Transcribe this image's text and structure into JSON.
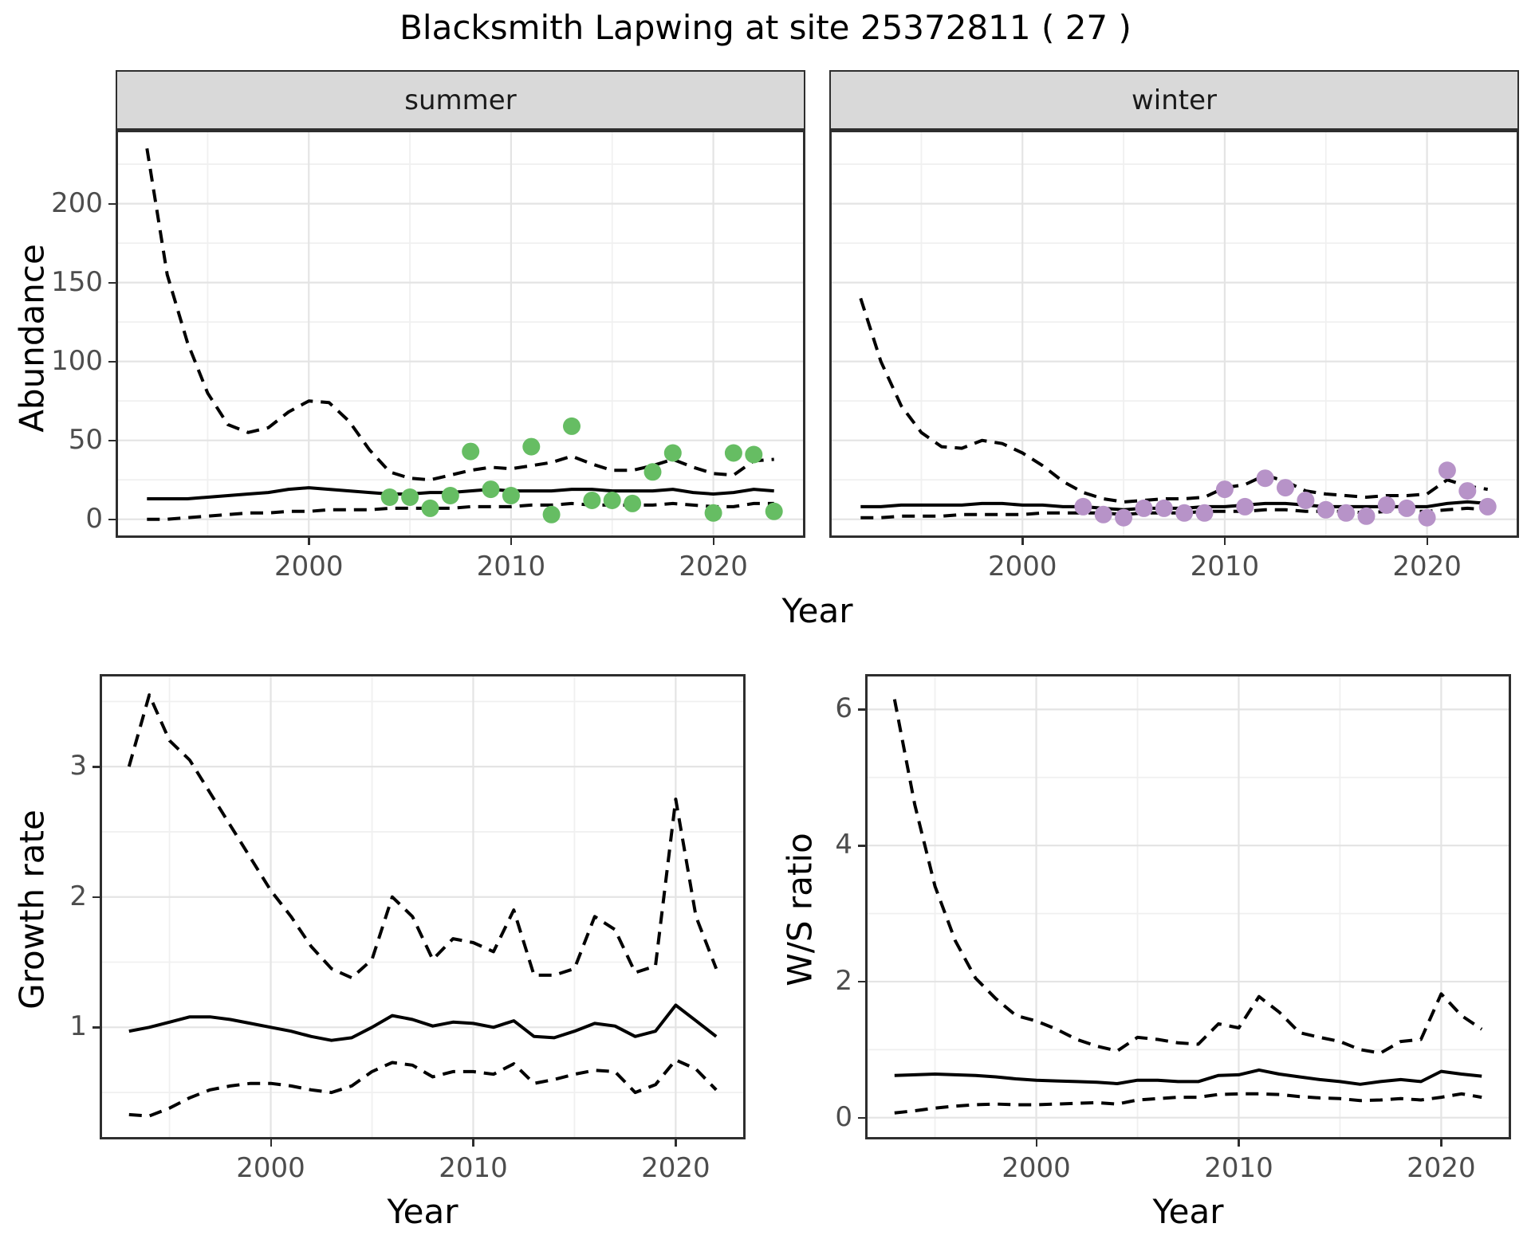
{
  "title": "Blacksmith Lapwing at site 25372811 ( 27 )",
  "facets": [
    "summer",
    "winter"
  ],
  "axis_titles": {
    "abundance": "Abundance",
    "year": "Year",
    "growth_rate": "Growth rate",
    "ws_ratio": "W/S ratio"
  },
  "colors": {
    "summer_point": "#66bd63",
    "winter_point": "#b793c8",
    "series_line": "#000000",
    "grid_major": "#e4e4e4",
    "grid_minor": "#f0f0f0",
    "strip_bg": "#d9d9d9",
    "panel_border": "#2e2e2e",
    "axis_text": "#4d4d4d",
    "title_text": "#000000",
    "panel_bg": "#ffffff"
  },
  "chart_data": [
    {
      "id": "abundance-summer",
      "type": "line",
      "facet": "summer",
      "title": "Blacksmith Lapwing at site 25372811 ( 27 )",
      "xlabel": "Year",
      "ylabel": "Abundance",
      "xlim": [
        1990.45,
        2024.55
      ],
      "ylim": [
        -11.75,
        246.75
      ],
      "x_ticks": [
        2000,
        2010,
        2020
      ],
      "x_minor": [
        1995,
        2005,
        2015
      ],
      "y_ticks": [
        0,
        50,
        100,
        150,
        200
      ],
      "y_minor": [
        25,
        75,
        125,
        175,
        225
      ],
      "show_y_labels": true,
      "grid": true,
      "legend": "none",
      "years": [
        1992,
        1993,
        1994,
        1995,
        1996,
        1997,
        1998,
        1999,
        2000,
        2001,
        2002,
        2003,
        2004,
        2005,
        2006,
        2007,
        2008,
        2009,
        2010,
        2011,
        2012,
        2013,
        2014,
        2015,
        2016,
        2017,
        2018,
        2019,
        2020,
        2021,
        2022,
        2023
      ],
      "series": [
        {
          "name": "upper-ci",
          "style": "dashed",
          "values": [
            235,
            155,
            112,
            80,
            60,
            55,
            58,
            68,
            75,
            74,
            62,
            44,
            30,
            26,
            25,
            28,
            31,
            33,
            32,
            34,
            36,
            40,
            35,
            31,
            31,
            34,
            38,
            33,
            29,
            28,
            37,
            38
          ]
        },
        {
          "name": "median",
          "style": "solid",
          "values": [
            13,
            13,
            13,
            14,
            15,
            16,
            17,
            19,
            20,
            19,
            18,
            17,
            16,
            16,
            17,
            17,
            18,
            19,
            18,
            18,
            18,
            19,
            19,
            18,
            18,
            18,
            19,
            17,
            16,
            17,
            19,
            18
          ]
        },
        {
          "name": "lower-ci",
          "style": "dashed",
          "values": [
            0,
            0,
            1,
            2,
            3,
            4,
            4,
            5,
            5,
            6,
            6,
            6,
            7,
            7,
            7,
            7,
            8,
            8,
            8,
            9,
            9,
            10,
            9,
            9,
            9,
            9,
            10,
            9,
            8,
            8,
            10,
            10
          ]
        }
      ],
      "points": {
        "name": "summer-observations",
        "color_key": "summer_point",
        "data": [
          [
            2004,
            14
          ],
          [
            2005,
            14
          ],
          [
            2006,
            7
          ],
          [
            2007,
            15
          ],
          [
            2008,
            43
          ],
          [
            2009,
            19
          ],
          [
            2010,
            15
          ],
          [
            2011,
            46
          ],
          [
            2012,
            3
          ],
          [
            2013,
            59
          ],
          [
            2014,
            12
          ],
          [
            2015,
            12
          ],
          [
            2016,
            10
          ],
          [
            2017,
            30
          ],
          [
            2018,
            42
          ],
          [
            2020,
            4
          ],
          [
            2021,
            42
          ],
          [
            2022,
            41
          ],
          [
            2023,
            5
          ]
        ]
      }
    },
    {
      "id": "abundance-winter",
      "type": "line",
      "facet": "winter",
      "xlabel": "Year",
      "ylabel": "Abundance",
      "xlim": [
        1990.45,
        2024.55
      ],
      "ylim": [
        -11.75,
        246.75
      ],
      "x_ticks": [
        2000,
        2010,
        2020
      ],
      "x_minor": [
        1995,
        2005,
        2015
      ],
      "y_ticks": [
        0,
        50,
        100,
        150,
        200
      ],
      "y_minor": [
        25,
        75,
        125,
        175,
        225
      ],
      "show_y_labels": false,
      "grid": true,
      "legend": "none",
      "years": [
        1992,
        1993,
        1994,
        1995,
        1996,
        1997,
        1998,
        1999,
        2000,
        2001,
        2002,
        2003,
        2004,
        2005,
        2006,
        2007,
        2008,
        2009,
        2010,
        2011,
        2012,
        2013,
        2014,
        2015,
        2016,
        2017,
        2018,
        2019,
        2020,
        2021,
        2022,
        2023
      ],
      "series": [
        {
          "name": "upper-ci",
          "style": "dashed",
          "values": [
            140,
            100,
            72,
            55,
            46,
            45,
            50,
            48,
            42,
            34,
            24,
            17,
            13,
            11,
            12,
            13,
            13,
            14,
            20,
            22,
            28,
            24,
            18,
            16,
            15,
            14,
            15,
            15,
            16,
            25,
            21,
            19
          ]
        },
        {
          "name": "median",
          "style": "solid",
          "values": [
            8,
            8,
            9,
            9,
            9,
            9,
            10,
            10,
            9,
            9,
            8,
            8,
            7,
            6,
            7,
            7,
            7,
            8,
            8,
            9,
            10,
            10,
            9,
            8,
            8,
            8,
            8,
            8,
            8,
            10,
            11,
            10
          ]
        },
        {
          "name": "lower-ci",
          "style": "dashed",
          "values": [
            1,
            1,
            2,
            2,
            2,
            3,
            3,
            3,
            3,
            4,
            4,
            4,
            4,
            3,
            4,
            4,
            4,
            5,
            5,
            5,
            6,
            6,
            5,
            5,
            5,
            4,
            5,
            5,
            5,
            6,
            7,
            6
          ]
        }
      ],
      "points": {
        "name": "winter-observations",
        "color_key": "winter_point",
        "data": [
          [
            2003,
            8
          ],
          [
            2004,
            3
          ],
          [
            2005,
            1
          ],
          [
            2006,
            7
          ],
          [
            2007,
            7
          ],
          [
            2008,
            4
          ],
          [
            2009,
            4
          ],
          [
            2010,
            19
          ],
          [
            2011,
            8
          ],
          [
            2012,
            26
          ],
          [
            2013,
            20
          ],
          [
            2014,
            12
          ],
          [
            2015,
            6
          ],
          [
            2016,
            4
          ],
          [
            2017,
            2
          ],
          [
            2018,
            9
          ],
          [
            2019,
            7
          ],
          [
            2020,
            1
          ],
          [
            2021,
            31
          ],
          [
            2022,
            18
          ],
          [
            2023,
            8
          ]
        ]
      }
    },
    {
      "id": "growth-rate",
      "type": "line",
      "facet": null,
      "xlabel": "Year",
      "ylabel": "Growth rate",
      "xlim": [
        1991.55,
        2023.45
      ],
      "ylim": [
        0.14,
        3.71
      ],
      "x_ticks": [
        2000,
        2010,
        2020
      ],
      "x_minor": [
        1995,
        2005,
        2015
      ],
      "y_ticks": [
        1,
        2,
        3
      ],
      "y_minor": [
        0.5,
        1.5,
        2.5,
        3.5
      ],
      "show_y_labels": true,
      "grid": true,
      "legend": "none",
      "years": [
        1993,
        1994,
        1995,
        1996,
        1997,
        1998,
        1999,
        2000,
        2001,
        2002,
        2003,
        2004,
        2005,
        2006,
        2007,
        2008,
        2009,
        2010,
        2011,
        2012,
        2013,
        2014,
        2015,
        2016,
        2017,
        2018,
        2019,
        2020,
        2021,
        2022
      ],
      "series": [
        {
          "name": "upper-ci",
          "style": "dashed",
          "values": [
            3.0,
            3.55,
            3.2,
            3.05,
            2.8,
            2.55,
            2.3,
            2.05,
            1.85,
            1.62,
            1.45,
            1.38,
            1.52,
            2.0,
            1.85,
            1.52,
            1.68,
            1.65,
            1.58,
            1.9,
            1.4,
            1.4,
            1.45,
            1.85,
            1.75,
            1.42,
            1.47,
            2.75,
            1.85,
            1.45
          ]
        },
        {
          "name": "median",
          "style": "solid",
          "values": [
            0.97,
            1.0,
            1.04,
            1.08,
            1.08,
            1.06,
            1.03,
            1.0,
            0.97,
            0.93,
            0.9,
            0.92,
            1.0,
            1.09,
            1.06,
            1.01,
            1.04,
            1.03,
            1.0,
            1.05,
            0.93,
            0.92,
            0.97,
            1.03,
            1.01,
            0.93,
            0.97,
            1.17,
            1.05,
            0.93
          ]
        },
        {
          "name": "lower-ci",
          "style": "dashed",
          "values": [
            0.33,
            0.32,
            0.38,
            0.46,
            0.52,
            0.55,
            0.57,
            0.57,
            0.55,
            0.52,
            0.5,
            0.55,
            0.66,
            0.73,
            0.71,
            0.62,
            0.66,
            0.66,
            0.64,
            0.72,
            0.57,
            0.6,
            0.64,
            0.67,
            0.66,
            0.5,
            0.56,
            0.75,
            0.68,
            0.52
          ]
        }
      ],
      "points": null
    },
    {
      "id": "ws-ratio",
      "type": "line",
      "facet": null,
      "xlabel": "Year",
      "ylabel": "W/S ratio",
      "xlim": [
        1991.55,
        2023.45
      ],
      "ylim": [
        -0.32,
        6.52
      ],
      "x_ticks": [
        2000,
        2010,
        2020
      ],
      "x_minor": [
        1995,
        2005,
        2015
      ],
      "y_ticks": [
        0,
        2,
        4,
        6
      ],
      "y_minor": [
        1,
        3,
        5
      ],
      "show_y_labels": true,
      "grid": true,
      "legend": "none",
      "years": [
        1993,
        1994,
        1995,
        1996,
        1997,
        1998,
        1999,
        2000,
        2001,
        2002,
        2003,
        2004,
        2005,
        2006,
        2007,
        2008,
        2009,
        2010,
        2011,
        2012,
        2013,
        2014,
        2015,
        2016,
        2017,
        2018,
        2019,
        2020,
        2021,
        2022
      ],
      "series": [
        {
          "name": "upper-ci",
          "style": "dashed",
          "values": [
            6.15,
            4.6,
            3.4,
            2.6,
            2.05,
            1.75,
            1.5,
            1.42,
            1.3,
            1.15,
            1.05,
            0.98,
            1.18,
            1.15,
            1.1,
            1.08,
            1.38,
            1.32,
            1.78,
            1.55,
            1.25,
            1.18,
            1.12,
            1.0,
            0.95,
            1.12,
            1.15,
            1.82,
            1.5,
            1.3
          ]
        },
        {
          "name": "median",
          "style": "solid",
          "values": [
            0.62,
            0.63,
            0.64,
            0.63,
            0.62,
            0.6,
            0.57,
            0.55,
            0.54,
            0.53,
            0.52,
            0.5,
            0.55,
            0.55,
            0.53,
            0.53,
            0.62,
            0.63,
            0.7,
            0.64,
            0.6,
            0.56,
            0.53,
            0.49,
            0.53,
            0.56,
            0.53,
            0.68,
            0.64,
            0.61
          ]
        },
        {
          "name": "lower-ci",
          "style": "dashed",
          "values": [
            0.07,
            0.1,
            0.14,
            0.17,
            0.19,
            0.2,
            0.19,
            0.19,
            0.2,
            0.21,
            0.22,
            0.2,
            0.26,
            0.28,
            0.3,
            0.3,
            0.34,
            0.35,
            0.35,
            0.34,
            0.31,
            0.29,
            0.28,
            0.25,
            0.26,
            0.28,
            0.26,
            0.3,
            0.35,
            0.3
          ]
        }
      ],
      "points": null
    }
  ]
}
